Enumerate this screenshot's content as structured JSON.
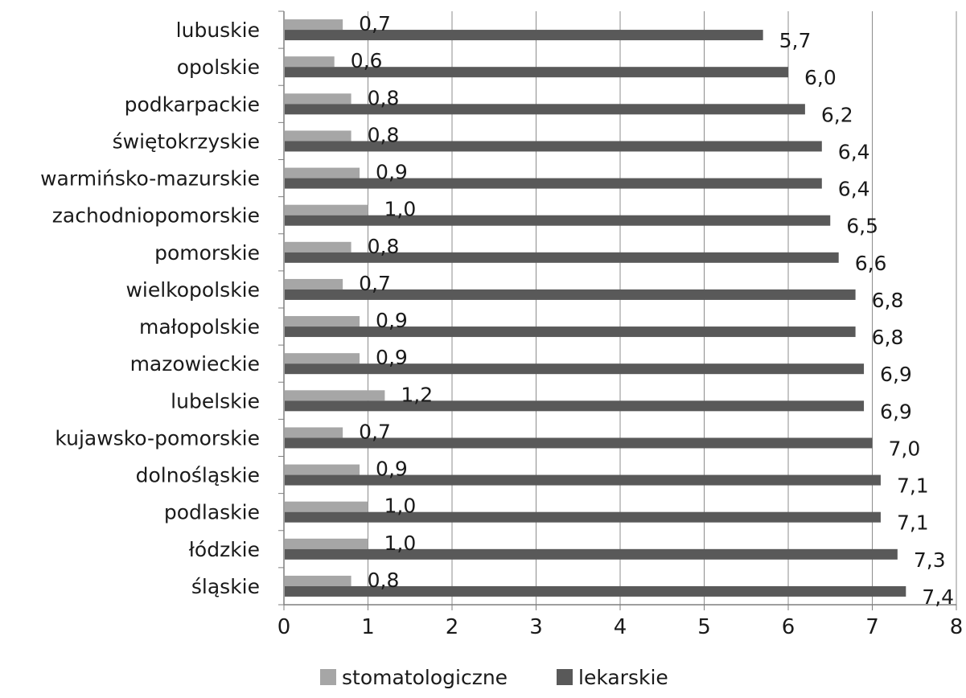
{
  "chart_data": {
    "type": "bar",
    "orientation": "horizontal",
    "categories": [
      "lubuskie",
      "opolskie",
      "podkarpackie",
      "świętokrzyskie",
      "warmińsko-mazurskie",
      "zachodniopomorskie",
      "pomorskie",
      "wielkopolskie",
      "małopolskie",
      "mazowieckie",
      "lubelskie",
      "kujawsko-pomorskie",
      "dolnośląskie",
      "podlaskie",
      "łódzkie",
      "śląskie"
    ],
    "series": [
      {
        "name": "stomatologiczne",
        "color": "#a6a6a6",
        "values": [
          0.7,
          0.6,
          0.8,
          0.8,
          0.9,
          1.0,
          0.8,
          0.7,
          0.9,
          0.9,
          1.2,
          0.7,
          0.9,
          1.0,
          1.0,
          0.8
        ],
        "labels": [
          "0,7",
          "0,6",
          "0,8",
          "0,8",
          "0,9",
          "1,0",
          "0,8",
          "0,7",
          "0,9",
          "0,9",
          "1,2",
          "0,7",
          "0,9",
          "1,0",
          "1,0",
          "0,8"
        ]
      },
      {
        "name": "lekarskie",
        "color": "#595959",
        "values": [
          5.7,
          6.0,
          6.2,
          6.4,
          6.4,
          6.5,
          6.6,
          6.8,
          6.8,
          6.9,
          6.9,
          7.0,
          7.1,
          7.1,
          7.3,
          7.4
        ],
        "labels": [
          "5,7",
          "6,0",
          "6,2",
          "6,4",
          "6,4",
          "6,5",
          "6,6",
          "6,8",
          "6,8",
          "6,9",
          "6,9",
          "7,0",
          "7,1",
          "7,1",
          "7,3",
          "7,4"
        ]
      }
    ],
    "xlim": [
      0,
      8
    ],
    "xticks": [
      "0",
      "1",
      "2",
      "3",
      "4",
      "5",
      "6",
      "7",
      "8"
    ],
    "grid": true,
    "legend_position": "bottom",
    "title": "",
    "xlabel": "",
    "ylabel": "",
    "gridline_color": "#8c8c8c",
    "axis_color": "#7f7f7f"
  }
}
